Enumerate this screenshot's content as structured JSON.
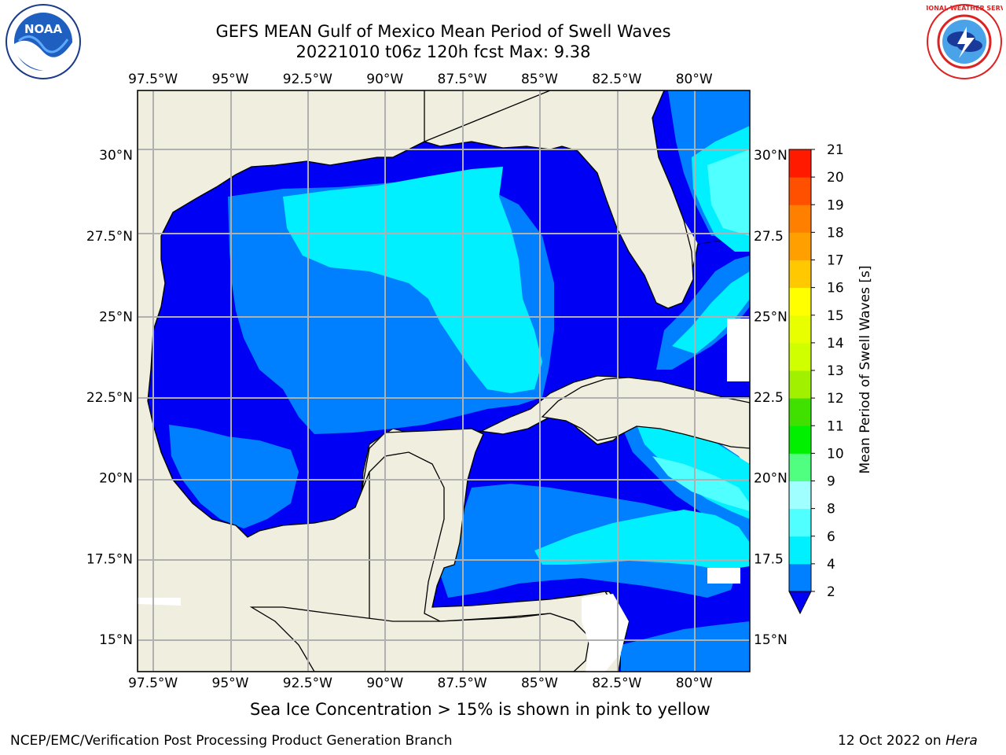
{
  "header": {
    "title_line1": "GEFS MEAN Gulf of Mexico Mean Period of Swell Waves",
    "title_line2": "20221010 t06z 120h fcst   Max: 9.38"
  },
  "logos": {
    "left": {
      "name": "noaa-logo",
      "text": "NOAA"
    },
    "right": {
      "name": "nws-logo",
      "text": "NATIONAL WEATHER SERVICE"
    }
  },
  "axes": {
    "lon_labels": [
      "97.5°W",
      "95°W",
      "92.5°W",
      "90°W",
      "87.5°W",
      "85°W",
      "82.5°W",
      "80°W"
    ],
    "lon_values": [
      -97.5,
      -95,
      -92.5,
      -90,
      -87.5,
      -85,
      -82.5,
      -80
    ],
    "lat_labels_left": [
      "30°N",
      "27.5°N",
      "25°N",
      "22.5°N",
      "20°N",
      "17.5°N",
      "15°N"
    ],
    "lat_labels_right": [
      "30°N",
      "27.5",
      "25°N",
      "22.5",
      "20°N",
      "17.5",
      "15°N"
    ],
    "lat_values": [
      30,
      27.5,
      25,
      22.5,
      20,
      17.5,
      15
    ],
    "lon_range": [
      -98,
      -78.2
    ],
    "lat_range": [
      14,
      32
    ]
  },
  "colorbar": {
    "label": "Mean Period of Swell Waves [s]",
    "ticks": [
      "2",
      "4",
      "6",
      "8",
      "9",
      "10",
      "11",
      "12",
      "13",
      "14",
      "15",
      "16",
      "17",
      "18",
      "19",
      "20",
      "21"
    ],
    "colors": [
      "#0000f5",
      "#0080ff",
      "#00f0ff",
      "#50ffff",
      "#a0ffff",
      "#50ff80",
      "#00f000",
      "#40e000",
      "#a0f000",
      "#d0ff00",
      "#e8ff00",
      "#ffff00",
      "#ffc800",
      "#ffa000",
      "#ff8000",
      "#ff5000",
      "#ff1a00",
      "#ff0000"
    ]
  },
  "map_colors": {
    "land": "#efeedf",
    "period_2_4": "#0000f5",
    "period_4_6": "#0080ff",
    "period_6_8": "#00f0ff",
    "period_8_9": "#50ffff"
  },
  "caption": "Sea Ice Concentration > 15% is shown in pink to yellow",
  "footer": {
    "left": "NCEP/EMC/Verification Post Processing Product Generation Branch",
    "date": "12 Oct 2022 on ",
    "host": "Hera"
  }
}
